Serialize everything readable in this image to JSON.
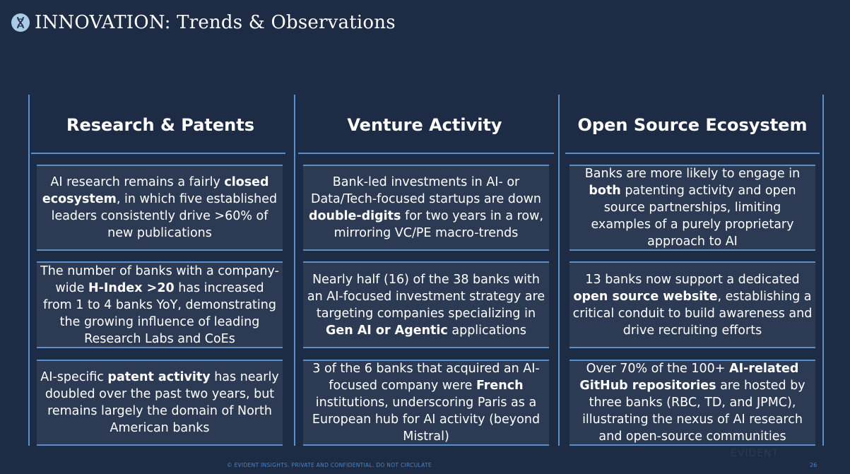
{
  "header": {
    "title": "INNOVATION: Trends & Observations",
    "logo_icon": "dna-helix-icon"
  },
  "columns": [
    {
      "heading": "Research & Patents",
      "cards": [
        [
          {
            "t": "AI research remains a fairly "
          },
          {
            "t": "closed ecosystem",
            "b": true
          },
          {
            "t": ", in which five established leaders consistently drive >60% of new publications"
          }
        ],
        [
          {
            "t": "The number of banks with a company-wide "
          },
          {
            "t": "H-Index >20",
            "b": true
          },
          {
            "t": " has increased from 1 to 4 banks YoY, demonstrating the growing influence of leading Research Labs and CoEs"
          }
        ],
        [
          {
            "t": "AI-specific "
          },
          {
            "t": "patent activity",
            "b": true
          },
          {
            "t": " has nearly doubled over the past two years, but remains largely the domain of North American banks"
          }
        ]
      ]
    },
    {
      "heading": "Venture Activity",
      "cards": [
        [
          {
            "t": "Bank-led investments in AI- or Data/Tech-focused startups are down "
          },
          {
            "t": "double-digits",
            "b": true
          },
          {
            "t": " for two years in a row, mirroring VC/PE macro-trends"
          }
        ],
        [
          {
            "t": "Nearly half (16) of the 38 banks with an AI-focused investment strategy are targeting companies specializing in "
          },
          {
            "t": "Gen AI or Agentic",
            "b": true
          },
          {
            "t": " applications"
          }
        ],
        [
          {
            "t": "3 of the 6 banks that acquired an AI-focused company were "
          },
          {
            "t": "French",
            "b": true
          },
          {
            "t": " institutions, underscoring Paris as a European hub for AI activity (beyond Mistral)"
          }
        ]
      ]
    },
    {
      "heading": "Open Source Ecosystem",
      "cards": [
        [
          {
            "t": "Banks are more likely to engage in "
          },
          {
            "t": "both",
            "b": true
          },
          {
            "t": " patenting activity and open source partnerships, limiting examples of a purely proprietary approach to AI"
          }
        ],
        [
          {
            "t": "13 banks now support a dedicated "
          },
          {
            "t": "open source website",
            "b": true
          },
          {
            "t": ", establishing a critical conduit to build awareness and drive recruiting efforts"
          }
        ],
        [
          {
            "t": "Over 70% of the 100+ "
          },
          {
            "t": "AI-related GitHub repositories",
            "b": true
          },
          {
            "t": " are hosted by three banks (RBC, TD, and JPMC), illustrating the nexus of AI research and open-source communities"
          }
        ]
      ]
    }
  ],
  "footer": {
    "confidential": "© EVIDENT INSIGHTS. PRIVATE AND CONFIDENTIAL. DO NOT CIRCULATE",
    "brand": "EVIDENT",
    "page_number": "26"
  },
  "colors": {
    "background": "#1d2b44",
    "card": "#2c3a54",
    "accent_line": "#5b8fc9",
    "footer_text": "#4a86c8"
  }
}
